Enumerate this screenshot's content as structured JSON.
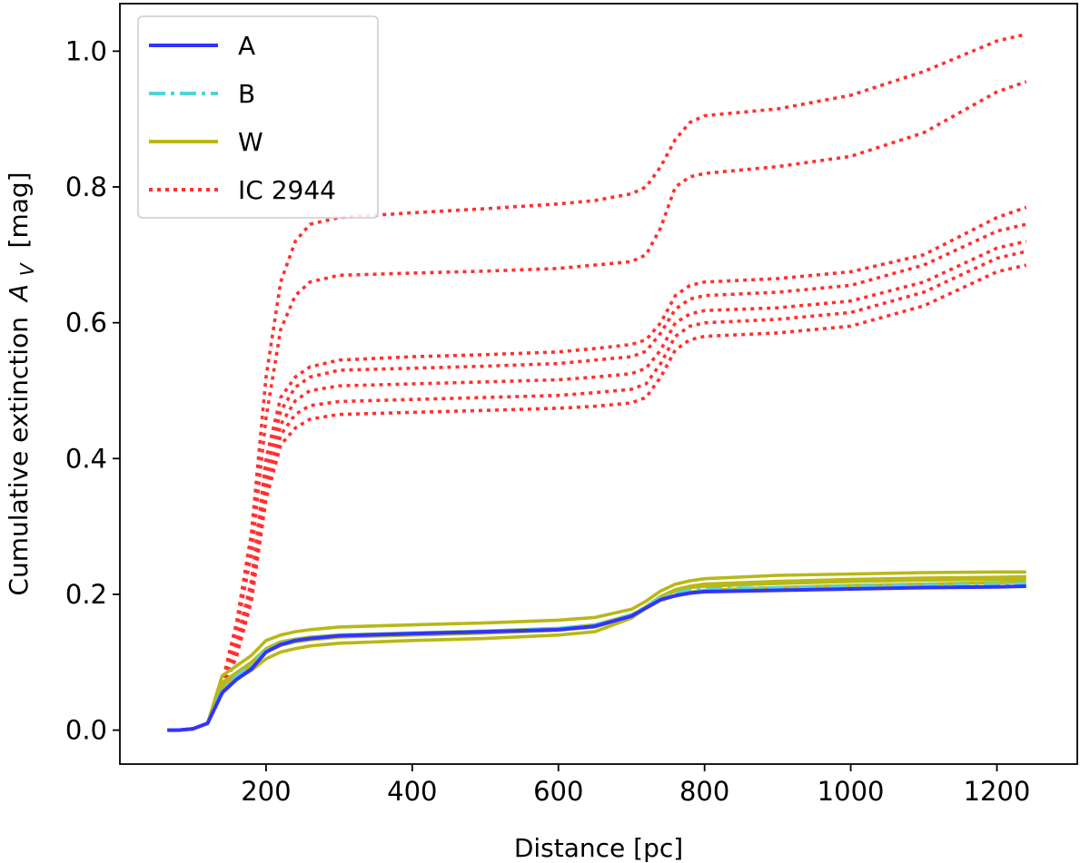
{
  "chart_data": {
    "type": "line",
    "xlabel": "Distance [pc]",
    "ylabel_prefix": "Cumulative extinction",
    "ylabel_symbol": "A",
    "ylabel_subscript": "V",
    "ylabel_unit": "[mag]",
    "xlim": [
      0,
      1310
    ],
    "ylim": [
      -0.05,
      1.07
    ],
    "xticks": [
      200,
      400,
      600,
      800,
      1000,
      1200
    ],
    "yticks": [
      0.0,
      0.2,
      0.4,
      0.6,
      0.8,
      1.0
    ],
    "xtick_labels": [
      "200",
      "400",
      "600",
      "800",
      "1000",
      "1200"
    ],
    "ytick_labels": [
      "0.0",
      "0.2",
      "0.4",
      "0.6",
      "0.8",
      "1.0"
    ],
    "grid": false,
    "legend_position": "top-left",
    "legend": [
      {
        "label": "A",
        "color": "#3333ff",
        "style": "solid"
      },
      {
        "label": "B",
        "color": "#4fd6d6",
        "style": "dashdot"
      },
      {
        "label": "W",
        "color": "#b8b817",
        "style": "solid"
      },
      {
        "label": "IC 2944",
        "color": "#ff3030",
        "style": "dotted"
      }
    ],
    "x": [
      65,
      80,
      100,
      120,
      140,
      160,
      180,
      200,
      220,
      240,
      260,
      300,
      400,
      500,
      600,
      650,
      700,
      720,
      740,
      760,
      780,
      800,
      900,
      1000,
      1100,
      1200,
      1240
    ],
    "series": [
      {
        "group": "IC 2944",
        "values": [
          0.0,
          0.0,
          0.002,
          0.01,
          0.07,
          0.16,
          0.29,
          0.52,
          0.66,
          0.72,
          0.745,
          0.755,
          0.762,
          0.768,
          0.775,
          0.78,
          0.79,
          0.8,
          0.83,
          0.87,
          0.895,
          0.905,
          0.915,
          0.935,
          0.97,
          1.015,
          1.025
        ]
      },
      {
        "group": "IC 2944",
        "values": [
          0.0,
          0.0,
          0.002,
          0.01,
          0.065,
          0.15,
          0.26,
          0.46,
          0.59,
          0.64,
          0.66,
          0.67,
          0.673,
          0.676,
          0.68,
          0.685,
          0.69,
          0.7,
          0.74,
          0.8,
          0.815,
          0.82,
          0.83,
          0.845,
          0.88,
          0.94,
          0.955
        ]
      },
      {
        "group": "IC 2944",
        "values": [
          0.0,
          0.0,
          0.002,
          0.01,
          0.06,
          0.13,
          0.22,
          0.4,
          0.49,
          0.52,
          0.535,
          0.545,
          0.55,
          0.553,
          0.557,
          0.562,
          0.568,
          0.575,
          0.6,
          0.64,
          0.655,
          0.66,
          0.665,
          0.675,
          0.7,
          0.755,
          0.77
        ]
      },
      {
        "group": "IC 2944",
        "values": [
          0.0,
          0.0,
          0.002,
          0.01,
          0.058,
          0.125,
          0.21,
          0.38,
          0.47,
          0.505,
          0.52,
          0.53,
          0.533,
          0.536,
          0.54,
          0.545,
          0.55,
          0.558,
          0.585,
          0.62,
          0.635,
          0.64,
          0.645,
          0.655,
          0.685,
          0.735,
          0.745
        ]
      },
      {
        "group": "IC 2944",
        "values": [
          0.0,
          0.0,
          0.002,
          0.01,
          0.056,
          0.12,
          0.2,
          0.36,
          0.45,
          0.485,
          0.5,
          0.507,
          0.51,
          0.513,
          0.516,
          0.52,
          0.525,
          0.533,
          0.56,
          0.6,
          0.613,
          0.618,
          0.622,
          0.632,
          0.66,
          0.71,
          0.72
        ]
      },
      {
        "group": "IC 2944",
        "values": [
          0.0,
          0.0,
          0.002,
          0.01,
          0.055,
          0.115,
          0.195,
          0.35,
          0.435,
          0.465,
          0.478,
          0.484,
          0.487,
          0.49,
          0.493,
          0.497,
          0.502,
          0.51,
          0.54,
          0.58,
          0.595,
          0.6,
          0.605,
          0.615,
          0.645,
          0.695,
          0.705
        ]
      },
      {
        "group": "IC 2944",
        "values": [
          0.0,
          0.0,
          0.002,
          0.01,
          0.054,
          0.11,
          0.19,
          0.34,
          0.42,
          0.445,
          0.458,
          0.465,
          0.468,
          0.471,
          0.474,
          0.477,
          0.482,
          0.49,
          0.52,
          0.56,
          0.575,
          0.58,
          0.585,
          0.595,
          0.625,
          0.675,
          0.685
        ]
      },
      {
        "group": "W",
        "values": [
          0.0,
          0.0,
          0.002,
          0.01,
          0.07,
          0.085,
          0.1,
          0.12,
          0.13,
          0.134,
          0.137,
          0.14,
          0.143,
          0.146,
          0.15,
          0.155,
          0.17,
          0.18,
          0.195,
          0.205,
          0.21,
          0.212,
          0.216,
          0.219,
          0.221,
          0.222,
          0.222
        ]
      },
      {
        "group": "W",
        "values": [
          0.0,
          0.0,
          0.002,
          0.01,
          0.08,
          0.095,
          0.11,
          0.132,
          0.14,
          0.145,
          0.148,
          0.152,
          0.155,
          0.158,
          0.162,
          0.166,
          0.178,
          0.19,
          0.205,
          0.215,
          0.22,
          0.223,
          0.228,
          0.23,
          0.232,
          0.233,
          0.233
        ]
      },
      {
        "group": "W",
        "values": [
          0.0,
          0.0,
          0.002,
          0.01,
          0.06,
          0.075,
          0.088,
          0.105,
          0.115,
          0.12,
          0.124,
          0.128,
          0.132,
          0.135,
          0.14,
          0.145,
          0.165,
          0.18,
          0.192,
          0.198,
          0.203,
          0.206,
          0.21,
          0.213,
          0.215,
          0.217,
          0.218
        ]
      },
      {
        "group": "W",
        "values": [
          0.0,
          0.0,
          0.002,
          0.01,
          0.065,
          0.08,
          0.095,
          0.115,
          0.125,
          0.13,
          0.133,
          0.137,
          0.14,
          0.143,
          0.147,
          0.152,
          0.168,
          0.182,
          0.197,
          0.207,
          0.212,
          0.215,
          0.219,
          0.222,
          0.224,
          0.225,
          0.226
        ]
      },
      {
        "group": "B",
        "values": [
          0.0,
          0.0,
          0.002,
          0.01,
          0.06,
          0.08,
          0.095,
          0.118,
          0.128,
          0.133,
          0.136,
          0.14,
          0.143,
          0.146,
          0.15,
          0.155,
          0.17,
          0.182,
          0.195,
          0.202,
          0.206,
          0.208,
          0.21,
          0.212,
          0.214,
          0.215,
          0.216
        ]
      },
      {
        "group": "A",
        "values": [
          0.0,
          0.0,
          0.002,
          0.01,
          0.055,
          0.075,
          0.09,
          0.115,
          0.126,
          0.132,
          0.135,
          0.139,
          0.142,
          0.145,
          0.148,
          0.153,
          0.168,
          0.18,
          0.192,
          0.198,
          0.202,
          0.204,
          0.206,
          0.208,
          0.21,
          0.211,
          0.212
        ]
      }
    ]
  }
}
